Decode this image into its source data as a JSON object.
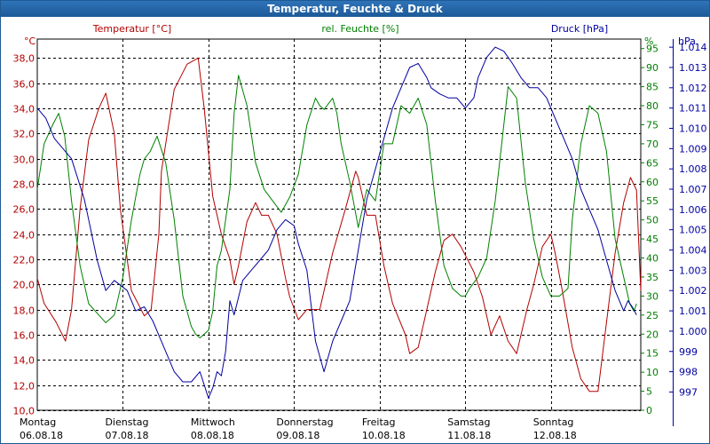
{
  "window": {
    "title": "Temperatur, Feuchte & Druck"
  },
  "chart_data": {
    "type": "line",
    "title": "Temperatur, Feuchte & Druck",
    "colors": {
      "temperature": "#b30000",
      "humidity": "#008000",
      "pressure": "#0000a0",
      "grid": "#000000",
      "title_bg": "#1d5a98"
    },
    "axes": {
      "temperature": {
        "label": "Temperatur [°C]",
        "unit": "°C",
        "ylim": [
          10,
          39.5
        ],
        "ticks": [
          "10,0",
          "12,0",
          "14,0",
          "16,0",
          "18,0",
          "20,0",
          "22,0",
          "24,0",
          "26,0",
          "28,0",
          "30,0",
          "32,0",
          "34,0",
          "36,0",
          "38,0"
        ]
      },
      "humidity": {
        "label": "rel. Feuchte [%]",
        "unit": "%",
        "ylim": [
          0,
          97.5
        ],
        "ticks": [
          "0",
          "5",
          "10",
          "15",
          "20",
          "25",
          "30",
          "35",
          "40",
          "45",
          "50",
          "55",
          "60",
          "65",
          "70",
          "75",
          "80",
          "85",
          "90",
          "95"
        ]
      },
      "pressure": {
        "label": "Druck [hPa]",
        "unit": "hPa",
        "ylim": [
          996.1,
          1014.4
        ],
        "ticks": [
          "997",
          "998",
          "999",
          "1.000",
          "1.001",
          "1.002",
          "1.003",
          "1.004",
          "1.005",
          "1.006",
          "1.007",
          "1.008",
          "1.009",
          "1.010",
          "1.011",
          "1.012",
          "1.013",
          "1.014"
        ]
      }
    },
    "x_axis": {
      "range_days": [
        0,
        7.05
      ],
      "categories": [
        {
          "day": "Montag",
          "date": "06.08.18"
        },
        {
          "day": "Dienstag",
          "date": "07.08.18"
        },
        {
          "day": "Mittwoch",
          "date": "08.08.18"
        },
        {
          "day": "Donnerstag",
          "date": "09.08.18"
        },
        {
          "day": "Freitag",
          "date": "10.08.18"
        },
        {
          "day": "Samstag",
          "date": "11.08.18"
        },
        {
          "day": "Sonntag",
          "date": "12.08.18"
        }
      ]
    },
    "series": [
      {
        "name": "Temperatur [°C]",
        "axis": "temperature",
        "color": "#b30000",
        "x": [
          0,
          0.08,
          0.22,
          0.33,
          0.4,
          0.5,
          0.6,
          0.72,
          0.8,
          0.9,
          0.97,
          1.1,
          1.25,
          1.33,
          1.42,
          1.45,
          1.6,
          1.75,
          1.88,
          1.95,
          2.05,
          2.1,
          2.15,
          2.25,
          2.3,
          2.35,
          2.45,
          2.55,
          2.62,
          2.7,
          2.8,
          2.9,
          2.95,
          3.05,
          3.15,
          3.3,
          3.45,
          3.6,
          3.72,
          3.75,
          3.85,
          3.95,
          4.05,
          4.15,
          4.3,
          4.35,
          4.45,
          4.55,
          4.65,
          4.75,
          4.85,
          4.95,
          5.1,
          5.2,
          5.3,
          5.4,
          5.5,
          5.6,
          5.72,
          5.8,
          5.9,
          6.0,
          6.05,
          6.12,
          6.25,
          6.35,
          6.45,
          6.55,
          6.65,
          6.75,
          6.85,
          6.93,
          7.0,
          7.05
        ],
        "values": [
          20.5,
          18.5,
          17.0,
          15.5,
          18.0,
          26.0,
          31.5,
          34.0,
          35.2,
          32.0,
          26.0,
          19.5,
          17.5,
          18.0,
          24.0,
          29.0,
          35.5,
          37.5,
          38.0,
          34.0,
          27.0,
          25.5,
          24.0,
          22.0,
          20.0,
          21.5,
          25.0,
          26.5,
          25.5,
          25.5,
          24.0,
          20.5,
          19.0,
          17.2,
          18.0,
          18.0,
          22.5,
          26.0,
          29.0,
          28.5,
          25.5,
          25.5,
          21.5,
          18.5,
          16.0,
          14.5,
          15.0,
          18.0,
          21.0,
          23.5,
          24.0,
          23.0,
          21.0,
          19.0,
          16.0,
          17.5,
          15.5,
          14.5,
          18.0,
          20.0,
          23.0,
          24.0,
          22.5,
          20.0,
          15.0,
          12.5,
          11.5,
          11.5,
          17.0,
          22.5,
          26.5,
          28.5,
          27.5,
          19.5
        ]
      },
      {
        "name": "rel. Feuchte [%]",
        "axis": "humidity",
        "color": "#008000",
        "x": [
          0,
          0.08,
          0.18,
          0.25,
          0.32,
          0.4,
          0.5,
          0.6,
          0.72,
          0.8,
          0.9,
          1.0,
          1.1,
          1.2,
          1.25,
          1.32,
          1.4,
          1.5,
          1.6,
          1.7,
          1.8,
          1.85,
          1.9,
          2.0,
          2.05,
          2.1,
          2.15,
          2.25,
          2.3,
          2.35,
          2.45,
          2.55,
          2.65,
          2.75,
          2.85,
          2.95,
          3.05,
          3.15,
          3.25,
          3.3,
          3.35,
          3.45,
          3.5,
          3.55,
          3.65,
          3.75,
          3.85,
          3.95,
          4.05,
          4.15,
          4.25,
          4.35,
          4.45,
          4.55,
          4.65,
          4.75,
          4.85,
          4.95,
          5.0,
          5.05,
          5.15,
          5.25,
          5.35,
          5.4,
          5.5,
          5.6,
          5.7,
          5.8,
          5.9,
          6.0,
          6.1,
          6.2,
          6.25,
          6.35,
          6.45,
          6.55,
          6.65,
          6.75,
          6.85,
          6.92,
          6.97,
          7.0
        ],
        "values": [
          58,
          70,
          75,
          78,
          72,
          55,
          38,
          28,
          25,
          23,
          25,
          35,
          50,
          62,
          66,
          68,
          72,
          65,
          50,
          30,
          22,
          20,
          19,
          21,
          26,
          38,
          42,
          58,
          78,
          88,
          80,
          65,
          58,
          55,
          52,
          56,
          62,
          75,
          82,
          80,
          79,
          82,
          78,
          70,
          60,
          48,
          58,
          55,
          70,
          70,
          80,
          78,
          82,
          75,
          55,
          38,
          32,
          30,
          30,
          32,
          35,
          40,
          55,
          65,
          85,
          82,
          60,
          45,
          35,
          30,
          30,
          32,
          50,
          70,
          80,
          78,
          68,
          45,
          35,
          28,
          26,
          28
        ]
      },
      {
        "name": "Druck [hPa]",
        "axis": "pressure",
        "color": "#0000a0",
        "x": [
          0,
          0.1,
          0.2,
          0.3,
          0.4,
          0.55,
          0.6,
          0.7,
          0.8,
          0.9,
          1.05,
          1.15,
          1.25,
          1.35,
          1.5,
          1.6,
          1.7,
          1.8,
          1.9,
          2.0,
          2.05,
          2.1,
          2.15,
          2.2,
          2.25,
          2.3,
          2.4,
          2.5,
          2.6,
          2.7,
          2.8,
          2.9,
          3.0,
          3.05,
          3.15,
          3.25,
          3.35,
          3.45,
          3.55,
          3.65,
          3.75,
          3.85,
          3.95,
          4.05,
          4.15,
          4.25,
          4.35,
          4.45,
          4.55,
          4.6,
          4.7,
          4.8,
          4.9,
          5.0,
          5.1,
          5.15,
          5.25,
          5.35,
          5.45,
          5.55,
          5.65,
          5.75,
          5.85,
          5.95,
          6.05,
          6.15,
          6.25,
          6.35,
          6.45,
          6.55,
          6.65,
          6.75,
          6.85,
          6.9,
          6.95,
          7.0
        ],
        "values": [
          1011.0,
          1010.5,
          1009.5,
          1009.0,
          1008.5,
          1006.5,
          1005.5,
          1003.5,
          1002.0,
          1002.5,
          1002.0,
          1001.0,
          1001.2,
          1000.5,
          999.0,
          998.0,
          997.5,
          997.5,
          998.0,
          996.7,
          997.2,
          998.0,
          997.8,
          999.0,
          1001.5,
          1000.8,
          1002.5,
          1003.0,
          1003.5,
          1004.0,
          1005.0,
          1005.5,
          1005.2,
          1004.3,
          1003.0,
          999.5,
          998.0,
          999.5,
          1000.5,
          1001.5,
          1004.0,
          1006.5,
          1008.0,
          1009.5,
          1011.0,
          1012.0,
          1013.0,
          1013.2,
          1012.5,
          1012.0,
          1011.7,
          1011.5,
          1011.5,
          1011.0,
          1011.5,
          1012.5,
          1013.5,
          1014.0,
          1013.8,
          1013.2,
          1012.5,
          1012.0,
          1012.0,
          1011.5,
          1010.5,
          1009.5,
          1008.5,
          1007.0,
          1006.0,
          1005.0,
          1003.5,
          1002.0,
          1001.0,
          1001.5,
          1001.2,
          1000.8
        ]
      }
    ]
  }
}
